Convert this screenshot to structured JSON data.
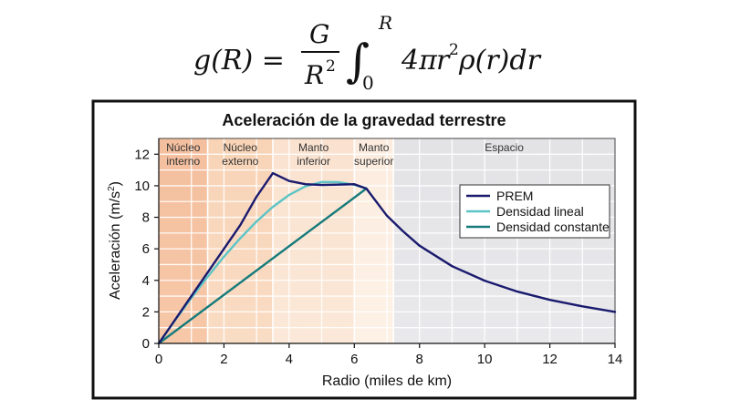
{
  "formula": {
    "lhs": "g(R) =",
    "num": "G",
    "den": "R",
    "den_exp": "2",
    "int_sym": "∫",
    "upper": "R",
    "lower": "0",
    "coef": "4π",
    "integrand": "r",
    "integrand_exp": "2",
    "tail": "ρ(r)dr"
  },
  "chart_data": {
    "type": "line",
    "title": "Aceleración de la gravedad terrestre",
    "xlabel": "Radio (miles de km)",
    "ylabel": "Aceleración (m/s",
    "ylabel_exp": "2",
    "ylabel_close": ")",
    "xlim": [
      0,
      14
    ],
    "ylim": [
      0,
      13
    ],
    "xticks": [
      0,
      2,
      4,
      6,
      8,
      10,
      12,
      14
    ],
    "yticks": [
      0,
      2,
      4,
      6,
      8,
      10,
      12
    ],
    "grid": true,
    "legend_position": "right",
    "regions": [
      {
        "label": [
          "Núcleo",
          "interno"
        ],
        "x0": 0,
        "x1": 1.5,
        "color_top": "#f4bf9e",
        "color_bottom": "#f6c8a8"
      },
      {
        "label": [
          "Núcleo",
          "externo"
        ],
        "x0": 1.5,
        "x1": 3.5,
        "color_top": "#f8d3b6",
        "color_bottom": "#f9dcc4"
      },
      {
        "label": [
          "Manto",
          "inferior"
        ],
        "x0": 3.5,
        "x1": 6.0,
        "color_top": "#fae2cf",
        "color_bottom": "#fbe8d8"
      },
      {
        "label": [
          "Manto",
          "superior"
        ],
        "x0": 6.0,
        "x1": 7.2,
        "color_top": "#fcecdf",
        "color_bottom": "#fdf1e6"
      },
      {
        "label": [
          "Espacio"
        ],
        "x0": 7.2,
        "x1": 14,
        "color_top": "#e3e3e6",
        "color_bottom": "#e9e9ec"
      }
    ],
    "series": [
      {
        "name": "PREM",
        "color": "#1a1a6e",
        "x": [
          0,
          0.5,
          1.0,
          1.5,
          2.0,
          2.5,
          3.0,
          3.5,
          4.0,
          4.5,
          5.0,
          5.5,
          6.0,
          6.37,
          7.0,
          7.5,
          8.0,
          9.0,
          10.0,
          11.0,
          12.0,
          13.0,
          14.0
        ],
        "y": [
          0,
          1.5,
          3.0,
          4.5,
          6.0,
          7.5,
          9.3,
          10.8,
          10.3,
          10.1,
          10.05,
          10.07,
          10.1,
          9.82,
          8.1,
          7.1,
          6.2,
          4.9,
          3.98,
          3.29,
          2.76,
          2.35,
          2.0
        ]
      },
      {
        "name": "Densidad lineal",
        "color": "#5cc4c6",
        "x": [
          0,
          0.5,
          1.0,
          1.5,
          2.0,
          2.5,
          3.0,
          3.5,
          4.0,
          4.5,
          5.0,
          5.5,
          6.0,
          6.37
        ],
        "y": [
          0,
          1.47,
          2.88,
          4.23,
          5.5,
          6.67,
          7.73,
          8.66,
          9.42,
          9.96,
          10.24,
          10.23,
          10.06,
          9.82
        ]
      },
      {
        "name": "Densidad constante",
        "color": "#167a7a",
        "x": [
          0,
          6.37
        ],
        "y": [
          0,
          9.82
        ]
      }
    ]
  }
}
